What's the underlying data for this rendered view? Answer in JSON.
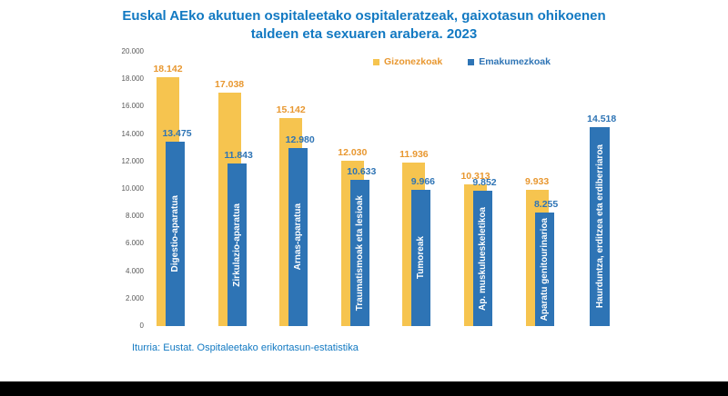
{
  "title": {
    "line1": "Euskal AEko akutuen ospitaleetako ospitaleratzeak, gaixotasun ohikoenen",
    "line2": "taldeen eta sexuaren arabera. 2023"
  },
  "legend": [
    {
      "label": "Gizonezkoak",
      "swatch_color": "#F6C44F",
      "text_color": "#E8972F"
    },
    {
      "label": "Emakumezkoak",
      "swatch_color": "#2E74B5",
      "text_color": "#2E74B5"
    }
  ],
  "source": "Iturria: Eustat. Ospitaleetako erikortasun-estatistika",
  "colors": {
    "title_blue": "#1279C2",
    "bar_yellow": "#F6C44F",
    "bar_blue": "#2E74B5",
    "male_value_label": "#E8972F",
    "female_value_label": "#2E74B5",
    "tick_gray": "#595959"
  },
  "chart_data": {
    "type": "bar",
    "title": "Euskal AEko akutuen ospitaleetako ospitaleratzeak, gaixotasun ohikoenen taldeen eta sexuaren arabera. 2023",
    "categories": [
      "Digestio-aparatua",
      "Zirkulazio-aparatua",
      "Arnas-aparatua",
      "Traumatismoak eta lesioak",
      "Tumoreak",
      "Ap. muskulueskeletikoa",
      "Aparatu genitourinarioa",
      "Haurduntza, erditzea eta erdiberriaroa"
    ],
    "series": [
      {
        "name": "Gizonezkoak",
        "color": "#F6C44F",
        "label_color": "#E8972F",
        "values": [
          18142,
          17038,
          15142,
          12030,
          11936,
          10313,
          9933,
          null
        ],
        "labels": [
          "18.142",
          "17.038",
          "15.142",
          "12.030",
          "11.936",
          "10.313",
          "9.933",
          null
        ]
      },
      {
        "name": "Emakumezkoak",
        "color": "#2E74B5",
        "label_color": "#2E74B5",
        "values": [
          13475,
          11843,
          12980,
          10633,
          9966,
          9852,
          8255,
          14518
        ],
        "labels": [
          "13.475",
          "11.843",
          "12.980",
          "10.633",
          "9.966",
          "9.852",
          "8.255",
          "14.518"
        ]
      }
    ],
    "ylim": [
      0,
      20000
    ],
    "yticks": [
      "20.000",
      "18.000",
      "16.000",
      "14.000",
      "12.000",
      "10.000",
      "8.000",
      "6.000",
      "4.000",
      "2.000",
      "0"
    ],
    "grid": false,
    "legend_position": "top",
    "xlabel": "",
    "ylabel": ""
  }
}
